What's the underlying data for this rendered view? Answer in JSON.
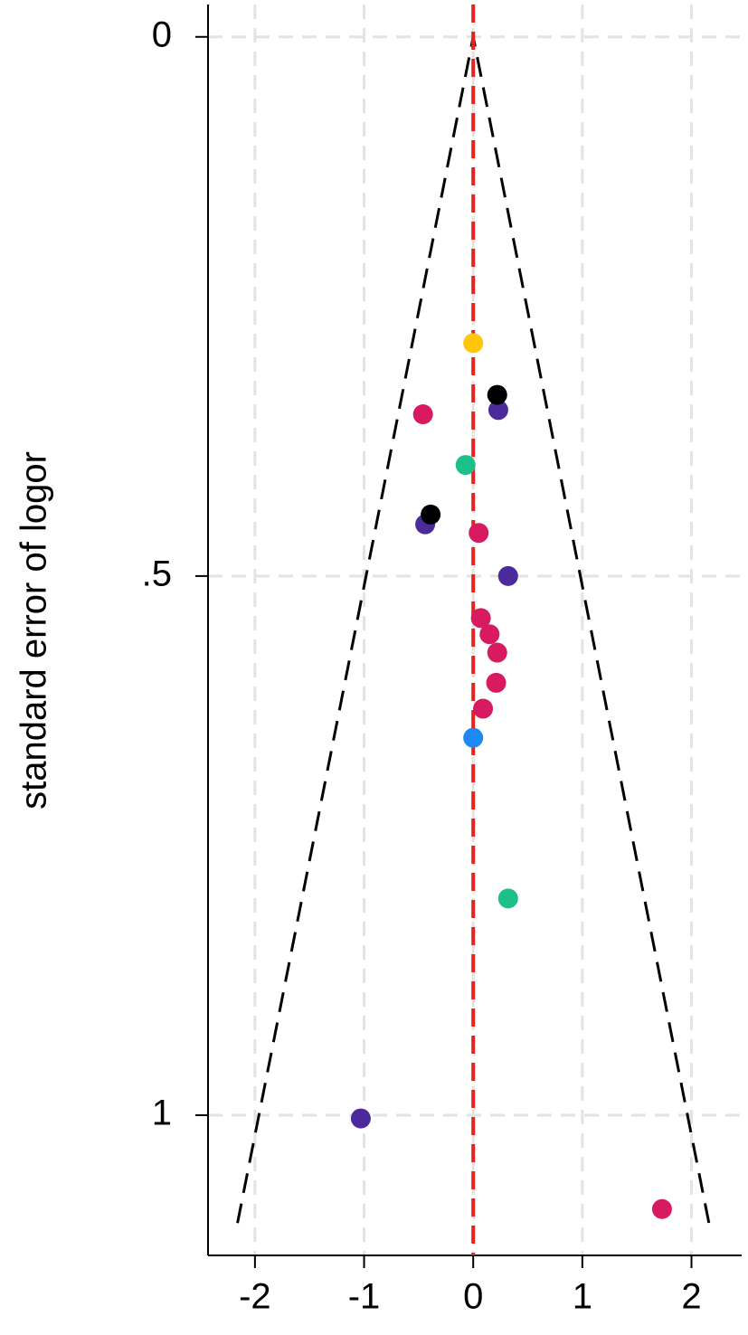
{
  "chart_data": {
    "type": "scatter",
    "y_label": "standard error of logor",
    "xlim": [
      -2.43,
      2.46
    ],
    "ylim": [
      -0.03,
      1.13
    ],
    "y_reversed": true,
    "xticks": [
      -2,
      -1,
      0,
      1,
      2
    ],
    "yticks": [
      0,
      {
        "value": 0.5,
        "label": ".5"
      },
      1
    ],
    "grid": true,
    "series": [
      {
        "color": "#d81b60",
        "x": [
          -0.46,
          0.05,
          0.07,
          0.15,
          0.22,
          0.21,
          0.09,
          1.73
        ],
        "y": [
          0.35,
          0.46,
          0.539,
          0.554,
          0.571,
          0.599,
          0.623,
          1.087
        ]
      },
      {
        "color": "#4b2a9b",
        "x": [
          0.23,
          -0.44,
          0.32,
          -1.03
        ],
        "y": [
          0.346,
          0.452,
          0.5,
          1.003
        ]
      },
      {
        "color": "#000000",
        "x": [
          0.22,
          -0.39
        ],
        "y": [
          0.332,
          0.443
        ]
      },
      {
        "color": "#1ec08a",
        "x": [
          -0.07,
          0.32
        ],
        "y": [
          0.397,
          0.799
        ]
      },
      {
        "color": "#ffc60a",
        "x": [
          0
        ],
        "y": [
          0.284
        ]
      },
      {
        "color": "#1e88f5",
        "x": [
          0
        ],
        "y": [
          0.65
        ]
      }
    ],
    "lines": [
      {
        "x": [
          -2.16,
          0,
          2.16
        ],
        "y": [
          1.1,
          0,
          1.1
        ],
        "color": "#000000",
        "dashed": true
      }
    ],
    "reference_lines": [
      {
        "x": 0,
        "color": "#e8221c",
        "dashed": true
      }
    ]
  }
}
